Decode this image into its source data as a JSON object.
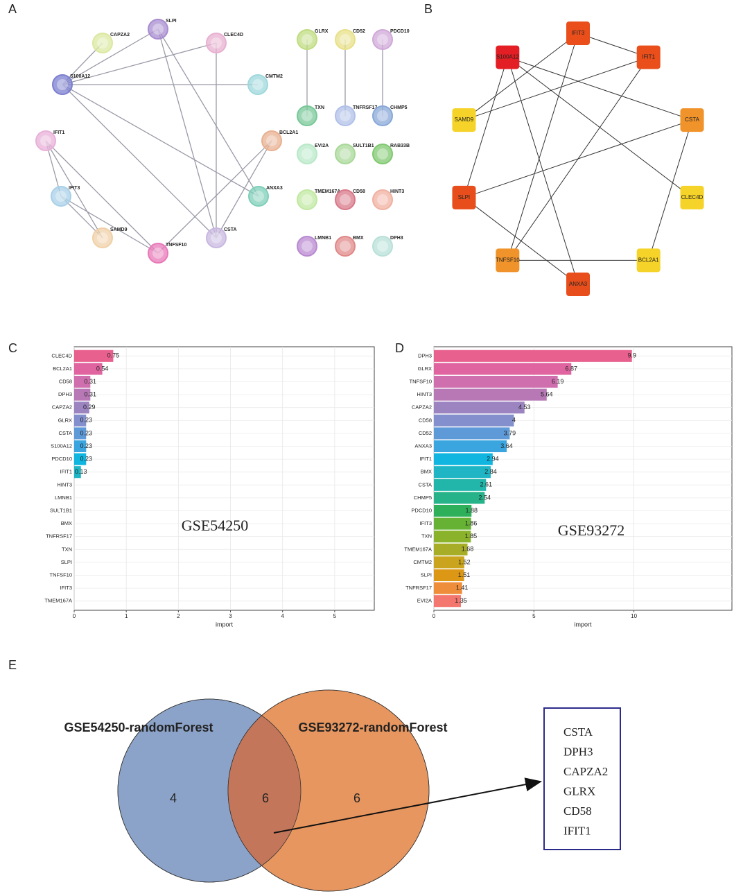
{
  "panel_labels": [
    "A",
    "B",
    "C",
    "D",
    "E"
  ],
  "network_a": {
    "nodes": [
      {
        "label": "CAPZA2",
        "color": "#dbe8a0"
      },
      {
        "label": "SLPI",
        "color": "#a88cd0"
      },
      {
        "label": "CLEC4D",
        "color": "#e8b0d0"
      },
      {
        "label": "S100A12",
        "color": "#7b7fcf"
      },
      {
        "label": "CMTM2",
        "color": "#9fd8dc"
      },
      {
        "label": "IFIT1",
        "color": "#e8b0d8"
      },
      {
        "label": "BCL2A1",
        "color": "#e8b090"
      },
      {
        "label": "IFIT3",
        "color": "#a8d0e8"
      },
      {
        "label": "ANXA3",
        "color": "#7fcfb8"
      },
      {
        "label": "SAMD9",
        "color": "#f0d0a8"
      },
      {
        "label": "CSTA",
        "color": "#c8b8e0"
      },
      {
        "label": "TNFSF10",
        "color": "#e878b8"
      },
      {
        "label": "GLRX",
        "color": "#c0dc80"
      },
      {
        "label": "CD52",
        "color": "#e8e088"
      },
      {
        "label": "PDCD10",
        "color": "#d0a8d8"
      },
      {
        "label": "TXN",
        "color": "#78c898"
      },
      {
        "label": "TNFRSF17",
        "color": "#b0c0e8"
      },
      {
        "label": "CHMP5",
        "color": "#88a8d8"
      },
      {
        "label": "EVI2A",
        "color": "#b8e8c8"
      },
      {
        "label": "SULT1B1",
        "color": "#a8d898"
      },
      {
        "label": "RAB33B",
        "color": "#80c870"
      },
      {
        "label": "TMEM167A",
        "color": "#c0e8a0"
      },
      {
        "label": "CD58",
        "color": "#d87888"
      },
      {
        "label": "HINT3",
        "color": "#f0b0a0"
      },
      {
        "label": "LMNB1",
        "color": "#b888d0"
      },
      {
        "label": "BMX",
        "color": "#e08888"
      },
      {
        "label": "DPH3",
        "color": "#b8e0d8"
      }
    ],
    "edges": [
      [
        "S100A12",
        "CAPZA2"
      ],
      [
        "S100A12",
        "SLPI"
      ],
      [
        "S100A12",
        "CLEC4D"
      ],
      [
        "S100A12",
        "CMTM2"
      ],
      [
        "S100A12",
        "ANXA3"
      ],
      [
        "S100A12",
        "CSTA"
      ],
      [
        "SLPI",
        "ANXA3"
      ],
      [
        "SLPI",
        "CSTA"
      ],
      [
        "CLEC4D",
        "CSTA"
      ],
      [
        "IFIT1",
        "IFIT3"
      ],
      [
        "IFIT1",
        "SAMD9"
      ],
      [
        "IFIT3",
        "SAMD9"
      ],
      [
        "IFIT1",
        "TNFSF10"
      ],
      [
        "IFIT3",
        "TNFSF10"
      ],
      [
        "BCL2A1",
        "TNFSF10"
      ],
      [
        "BCL2A1",
        "CSTA"
      ],
      [
        "GLRX",
        "TXN"
      ],
      [
        "CD52",
        "TNFRSF17"
      ],
      [
        "PDCD10",
        "CHMP5"
      ]
    ]
  },
  "network_b": {
    "nodes": [
      {
        "label": "IFIT3",
        "color": "#e94e1b"
      },
      {
        "label": "IFIT1",
        "color": "#e94e1b"
      },
      {
        "label": "CSTA",
        "color": "#f0932b"
      },
      {
        "label": "CLEC4D",
        "color": "#f5d328"
      },
      {
        "label": "BCL2A1",
        "color": "#f5d328"
      },
      {
        "label": "ANXA3",
        "color": "#e84e1b"
      },
      {
        "label": "TNFSF10",
        "color": "#f0932b"
      },
      {
        "label": "SLPI",
        "color": "#e84e1b"
      },
      {
        "label": "SAMD9",
        "color": "#f5d328"
      },
      {
        "label": "S100A12",
        "color": "#e31e24"
      }
    ],
    "edges": [
      [
        "IFIT3",
        "IFIT1"
      ],
      [
        "SAMD9",
        "IFIT3"
      ],
      [
        "SAMD9",
        "IFIT1"
      ],
      [
        "S100A12",
        "SLPI"
      ],
      [
        "S100A12",
        "ANXA3"
      ],
      [
        "S100A12",
        "CLEC4D"
      ],
      [
        "S100A12",
        "CSTA"
      ],
      [
        "IFIT3",
        "TNFSF10"
      ],
      [
        "IFIT1",
        "TNFSF10"
      ],
      [
        "CSTA",
        "SLPI"
      ],
      [
        "CSTA",
        "BCL2A1"
      ],
      [
        "SLPI",
        "ANXA3"
      ],
      [
        "TNFSF10",
        "BCL2A1"
      ]
    ]
  },
  "chart_data": [
    {
      "type": "barh",
      "annotation": "GSE54250",
      "x_label": "import",
      "categories": [
        "CLEC4D",
        "BCL2A1",
        "CD58",
        "DPH3",
        "CAPZA2",
        "GLRX",
        "CSTA",
        "S100A12",
        "PDCD10",
        "IFIT1",
        "HINT3",
        "LMNB1",
        "SULT1B1",
        "BMX",
        "TNFRSF17",
        "TXN",
        "SLPI",
        "TNFSF10",
        "IFIT3",
        "TMEM167A"
      ],
      "values": [
        0.75,
        0.54,
        0.31,
        0.31,
        0.29,
        0.23,
        0.23,
        0.23,
        0.23,
        0.13,
        0,
        0,
        0,
        0,
        0,
        0,
        0,
        0,
        0,
        0
      ],
      "colors": [
        "#e8608e",
        "#e0649f",
        "#cf6fae",
        "#b778b5",
        "#9b84c0",
        "#8490cd",
        "#5f9ad8",
        "#3ba5e0",
        "#10b6e0",
        "#1fb5c4",
        "#22b5aa",
        "#27b38a",
        "#2eaf5a",
        "#66b234",
        "#8ab32b",
        "#a7ad26",
        "#c9a41c",
        "#dc9714",
        "#ee8d3a",
        "#f3766f"
      ],
      "xlim": [
        0,
        5.76
      ],
      "xticks": [
        0,
        1,
        2,
        3,
        4,
        5
      ],
      "grid": true
    },
    {
      "type": "barh",
      "annotation": "GSE93272",
      "x_label": "import",
      "categories": [
        "DPH3",
        "GLRX",
        "TNFSF10",
        "HINT3",
        "CAPZA2",
        "CD58",
        "CD52",
        "ANXA3",
        "IFIT1",
        "BMX",
        "CSTA",
        "CHMP5",
        "PDCD10",
        "IFIT3",
        "TXN",
        "TMEM167A",
        "CMTM2",
        "SLPI",
        "TNFRSF17",
        "EVI2A"
      ],
      "values": [
        9.9,
        6.87,
        6.19,
        5.64,
        4.53,
        4,
        3.79,
        3.64,
        2.94,
        2.84,
        2.61,
        2.54,
        1.88,
        1.86,
        1.85,
        1.68,
        1.52,
        1.51,
        1.41,
        1.35
      ],
      "colors": [
        "#e8608e",
        "#e0649f",
        "#cf6fae",
        "#b778b5",
        "#9b84c0",
        "#8490cd",
        "#5f9ad8",
        "#3ba5e0",
        "#10b6e0",
        "#1fb5c4",
        "#22b5aa",
        "#27b38a",
        "#2eaf5a",
        "#66b234",
        "#8ab32b",
        "#a7ad26",
        "#c9a41c",
        "#dc9714",
        "#ee8d3a",
        "#f3766f"
      ],
      "xlim": [
        0,
        14.9
      ],
      "xticks": [
        0,
        5,
        10
      ],
      "grid": true
    }
  ],
  "venn": {
    "sets": [
      {
        "name": "GSE54250-randomForest",
        "color": "#8ca3c9"
      },
      {
        "name": "GSE93272-randomForest",
        "color": "#e8965f"
      }
    ],
    "overlap_color": "#c4765a",
    "regions": [
      4,
      6,
      6
    ],
    "genes": [
      "CSTA",
      "DPH3",
      "CAPZA2",
      "GLRX",
      "CD58",
      "IFIT1"
    ]
  }
}
